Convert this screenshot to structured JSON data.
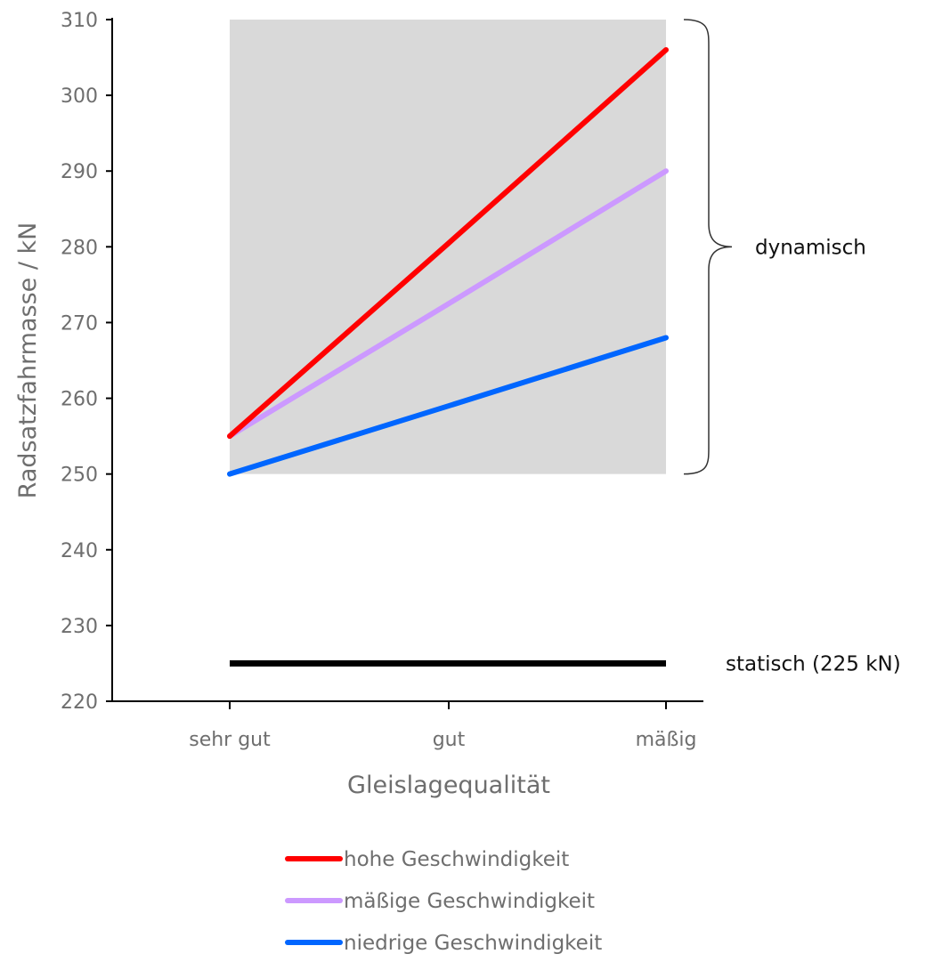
{
  "chart_data": {
    "type": "line",
    "xlabel": "Gleislagequalität",
    "ylabel": "Radsatzfahrmasse / kN",
    "categories": [
      "sehr gut",
      "gut",
      "mäßig"
    ],
    "ylim": [
      220,
      310
    ],
    "yticks": [
      220,
      230,
      240,
      250,
      260,
      270,
      280,
      290,
      300,
      310
    ],
    "grid": false,
    "legend_position": "bottom",
    "series": [
      {
        "name": "hohe Geschwindigkeit",
        "color": "#ff0000",
        "values": [
          255,
          280.5,
          306
        ]
      },
      {
        "name": "mäßige Geschwindigkeit",
        "color": "#cc99ff",
        "values": [
          255,
          272.5,
          290
        ]
      },
      {
        "name": "niedrige Geschwindigkeit",
        "color": "#0066ff",
        "values": [
          250,
          259,
          268
        ]
      }
    ],
    "static_line": {
      "label": "statisch (225 kN)",
      "value": 225,
      "color": "#000000"
    },
    "dynamic_region": {
      "label": "dynamisch",
      "y_range": [
        250,
        310
      ],
      "color": "#d9d9d9"
    }
  }
}
